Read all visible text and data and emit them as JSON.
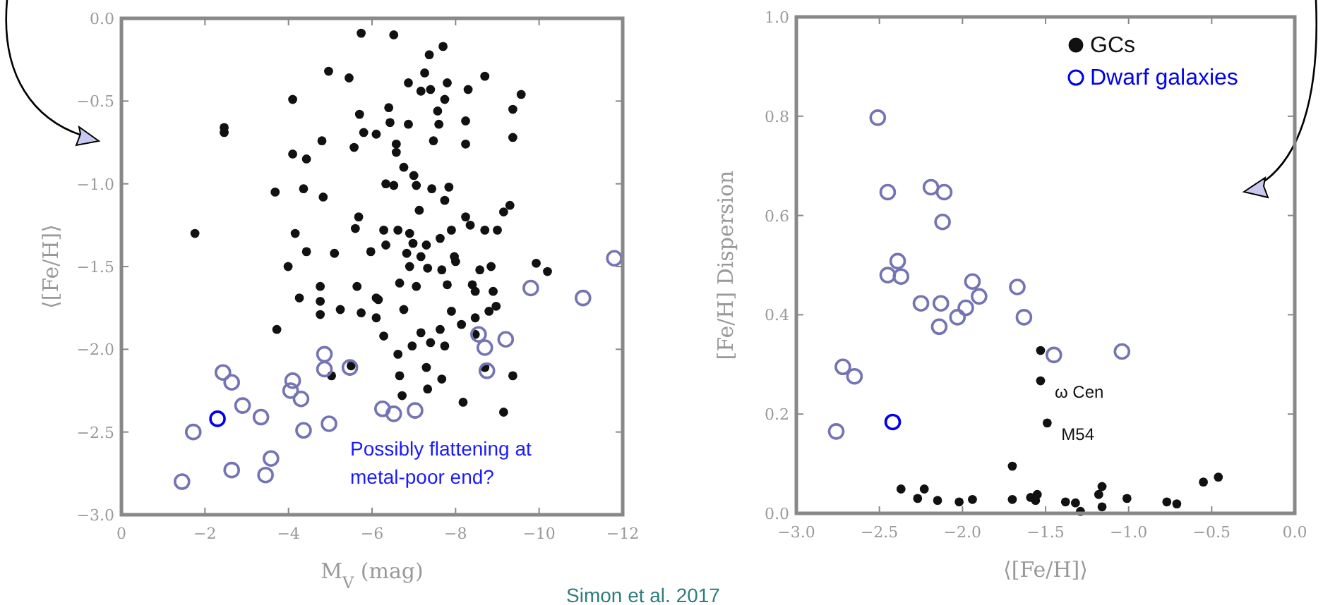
{
  "chart_data": [
    {
      "type": "scatter",
      "xlabel": "M$_{V}$ (mag)",
      "ylabel": "⟨[Fe/H]⟩",
      "xlim": [
        0,
        -12
      ],
      "ylim": [
        -3,
        0
      ],
      "xticks": [
        0,
        -2,
        -4,
        -6,
        -8,
        -10,
        -12
      ],
      "yticks": [
        {
          "value": 0,
          "label": "0.0"
        },
        -0.5,
        {
          "value": -1,
          "label": "−1.0"
        },
        -1.5,
        {
          "value": -2,
          "label": "−2.0"
        },
        -2.5,
        {
          "value": -3,
          "label": "−3.0"
        }
      ],
      "grid": false,
      "legend": false,
      "marker": "circle",
      "annotations": [
        "Possibly flattening at metal-poor end?",
        "Simon et al. 2017"
      ],
      "series": [
        {
          "color": "#111111",
          "x": [
            -5.74,
            -6.52,
            -7.7,
            -7.37,
            -4.96,
            -5.45,
            -7.26,
            -6.87,
            -7.17,
            -7.4,
            -7.8,
            -7.74,
            -8.3,
            -8.7,
            -9.57,
            -9.37,
            -9.37,
            -4.1,
            -2.46,
            -2.46,
            -5.7,
            -6.4,
            -6.43,
            -6.87,
            -7.57,
            -7.6,
            -8.24,
            -4.8,
            -5.57,
            -5.8,
            -6.1,
            -6.58,
            -6.58,
            -7.47,
            -8.24,
            -4.1,
            -4.43,
            -6.76,
            -7.0,
            -6.33,
            -6.52,
            -7.06,
            -7.43,
            -7.84,
            -7.74,
            -3.68,
            -4.36,
            -4.83,
            -7.13,
            -1.76,
            -4.16,
            -5.68,
            -5.6,
            -6.28,
            -6.62,
            -6.9,
            -6.98,
            -7.3,
            -7.63,
            -7.9,
            -8.24,
            -8.35,
            -8.7,
            -9.0,
            -9.15,
            -9.3,
            -6.33,
            -4.43,
            -5.1,
            -5.97,
            -6.83,
            -7.17,
            -7.97,
            -8.0,
            -3.99,
            -6.9,
            -7.33,
            -7.67,
            -8.58,
            -8.85,
            -9.93,
            -10.2,
            -4.76,
            -5.64,
            -6.66,
            -7.06,
            -7.8,
            -8.4,
            -8.47,
            -8.9,
            -4.26,
            -6.1,
            -4.76,
            -4.76,
            -5.24,
            -5.74,
            -6.1,
            -6.15,
            -6.76,
            -7.9,
            -8.47,
            -8.8,
            -8.97,
            -3.72,
            -6.28,
            -6.62,
            -6.96,
            -7.17,
            -7.4,
            -7.63,
            -7.74,
            -8.14,
            -8.47,
            -7.3,
            -7.67,
            -6.66,
            -7.33,
            -6.72,
            -8.18,
            -9.15,
            -9.37,
            -8.7,
            -5.03,
            -5.5
          ],
          "values": [
            -0.09,
            -0.1,
            -0.17,
            -0.22,
            -0.32,
            -0.36,
            -0.33,
            -0.39,
            -0.44,
            -0.43,
            -0.39,
            -0.49,
            -0.43,
            -0.35,
            -0.46,
            -0.55,
            -0.72,
            -0.49,
            -0.66,
            -0.69,
            -0.58,
            -0.54,
            -0.63,
            -0.64,
            -0.56,
            -0.64,
            -0.62,
            -0.74,
            -0.78,
            -0.69,
            -0.7,
            -0.76,
            -0.81,
            -0.74,
            -0.76,
            -0.82,
            -0.85,
            -0.9,
            -0.95,
            -1.0,
            -1.01,
            -1.01,
            -1.03,
            -1.02,
            -1.1,
            -1.05,
            -1.03,
            -1.08,
            -1.16,
            -1.3,
            -1.3,
            -1.2,
            -1.27,
            -1.28,
            -1.28,
            -1.3,
            -1.36,
            -1.37,
            -1.33,
            -1.28,
            -1.2,
            -1.25,
            -1.28,
            -1.28,
            -1.17,
            -1.13,
            -1.37,
            -1.41,
            -1.42,
            -1.41,
            -1.42,
            -1.44,
            -1.44,
            -1.47,
            -1.5,
            -1.5,
            -1.51,
            -1.52,
            -1.52,
            -1.5,
            -1.48,
            -1.53,
            -1.62,
            -1.62,
            -1.6,
            -1.62,
            -1.61,
            -1.61,
            -1.65,
            -1.65,
            -1.69,
            -1.69,
            -1.71,
            -1.79,
            -1.76,
            -1.78,
            -1.81,
            -1.7,
            -1.76,
            -1.77,
            -1.81,
            -1.77,
            -1.74,
            -1.88,
            -1.92,
            -2.03,
            -1.98,
            -1.9,
            -1.96,
            -1.88,
            -1.98,
            -1.85,
            -1.91,
            -2.11,
            -2.18,
            -2.16,
            -2.24,
            -2.28,
            -2.32,
            -2.38,
            -2.16,
            -2.11,
            -2.16,
            -2.1
          ]
        },
        {
          "x": [
            -9.8,
            -11.05,
            -11.8,
            -8.55,
            -8.7,
            -9.2,
            -8.75,
            -4.86,
            -4.86,
            -5.47,
            -2.43,
            -2.64,
            -4.1,
            -4.05,
            -4.3,
            -2.9,
            -3.34,
            -6.25,
            -6.52,
            -7.03,
            -1.72,
            -4.36,
            -4.97,
            -2.64,
            -3.58,
            -3.45,
            -1.45,
            -2.3
          ],
          "values": [
            -1.63,
            -1.69,
            -1.45,
            -1.91,
            -1.99,
            -1.94,
            -2.13,
            -2.03,
            -2.12,
            -2.11,
            -2.14,
            -2.2,
            -2.19,
            -2.25,
            -2.3,
            -2.34,
            -2.41,
            -2.36,
            -2.39,
            -2.37,
            -2.5,
            -2.49,
            -2.45,
            -2.73,
            -2.66,
            -2.76,
            -2.8,
            -2.42
          ],
          "colors": [
            "#7474b4",
            "#7474b4",
            "#7474b4",
            "#7474b4",
            "#7474b4",
            "#7474b4",
            "#7474b4",
            "#7474b4",
            "#7474b4",
            "#7474b4",
            "#7474b4",
            "#7474b4",
            "#7474b4",
            "#7474b4",
            "#7474b4",
            "#7474b4",
            "#7474b4",
            "#7474b4",
            "#7474b4",
            "#7474b4",
            "#7474b4",
            "#7474b4",
            "#7474b4",
            "#7474b4",
            "#7474b4",
            "#7474b4",
            "#7474b4",
            "#0000ee"
          ]
        }
      ]
    },
    {
      "type": "scatter",
      "xlabel": "⟨[Fe/H]⟩",
      "ylabel": "[Fe/H] Dispersion",
      "xlim": [
        -3,
        0
      ],
      "ylim": [
        0,
        1
      ],
      "xticks": [
        {
          "value": -3,
          "label": "−3.0"
        },
        -2.5,
        {
          "value": -2,
          "label": "−2.0"
        },
        -1.5,
        {
          "value": -1,
          "label": "−1.0"
        },
        -0.5,
        {
          "value": 0,
          "label": "0.0"
        }
      ],
      "yticks": [
        {
          "value": 0,
          "label": "0.0"
        },
        0.2,
        0.4,
        0.6,
        0.8,
        {
          "value": 1,
          "label": "1.0"
        }
      ],
      "grid": false,
      "legend": "top right",
      "marker": "circle",
      "annotations": [
        {
          "text": "ω Cen",
          "x": -1.53,
          "y": 0.267
        },
        {
          "text": "M54",
          "x": -1.49,
          "y": 0.182
        }
      ],
      "series": [
        {
          "name": "GCs",
          "color": "#111111",
          "x": [
            -1.53,
            -1.53,
            -1.49,
            -1.7,
            -1.7,
            -2.37,
            -2.27,
            -2.23,
            -2.15,
            -2.02,
            -1.94,
            -1.59,
            -1.55,
            -1.56,
            -1.38,
            -1.32,
            -1.29,
            -1.16,
            -1.16,
            -1.18,
            -1.01,
            -0.77,
            -0.71,
            -0.55,
            -0.46
          ],
          "values": [
            0.328,
            0.267,
            0.182,
            0.095,
            0.028,
            0.049,
            0.03,
            0.049,
            0.026,
            0.023,
            0.028,
            0.032,
            0.038,
            0.026,
            0.023,
            0.021,
            0.004,
            0.013,
            0.054,
            0.038,
            0.03,
            0.023,
            0.019,
            0.063,
            0.073
          ]
        },
        {
          "name": "Dwarf galaxies",
          "color": "#0000ee",
          "x": [
            -2.51,
            -2.45,
            -2.19,
            -2.11,
            -2.12,
            -2.39,
            -2.45,
            -2.37,
            -1.94,
            -1.67,
            -1.9,
            -2.25,
            -2.13,
            -2.14,
            -2.03,
            -1.98,
            -1.63,
            -1.45,
            -1.04,
            -2.72,
            -2.65,
            -2.76,
            -2.42
          ],
          "values": [
            0.797,
            0.647,
            0.657,
            0.647,
            0.587,
            0.508,
            0.48,
            0.477,
            0.467,
            0.456,
            0.437,
            0.423,
            0.423,
            0.376,
            0.395,
            0.414,
            0.395,
            0.319,
            0.326,
            0.295,
            0.276,
            0.165,
            0.184
          ],
          "colors": [
            "#7474b4",
            "#7474b4",
            "#7474b4",
            "#7474b4",
            "#7474b4",
            "#7474b4",
            "#7474b4",
            "#7474b4",
            "#7474b4",
            "#7474b4",
            "#7474b4",
            "#7474b4",
            "#7474b4",
            "#7474b4",
            "#7474b4",
            "#7474b4",
            "#7474b4",
            "#7474b4",
            "#7474b4",
            "#7474b4",
            "#7474b4",
            "#7474b4",
            "#0000ee"
          ]
        }
      ]
    }
  ]
}
